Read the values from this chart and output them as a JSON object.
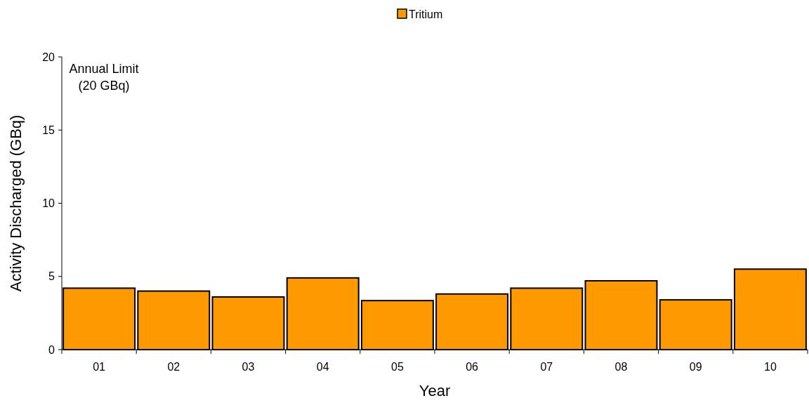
{
  "chart_data": {
    "type": "bar",
    "xlabel": "Year",
    "ylabel": "Activity Discharged (GBq)",
    "categories": [
      "01",
      "02",
      "03",
      "04",
      "05",
      "06",
      "07",
      "08",
      "09",
      "10"
    ],
    "series": [
      {
        "name": "Tritium",
        "color": "#ff9900",
        "values": [
          4.2,
          4.0,
          3.6,
          4.9,
          3.35,
          3.8,
          4.2,
          4.7,
          3.4,
          5.5
        ]
      }
    ],
    "ylim": [
      0,
      20
    ],
    "yticks": [
      0,
      5,
      10,
      15,
      20
    ],
    "grid": false,
    "legend": "top",
    "annotations": [
      "Annual Limit\n(20 GBq)"
    ]
  }
}
